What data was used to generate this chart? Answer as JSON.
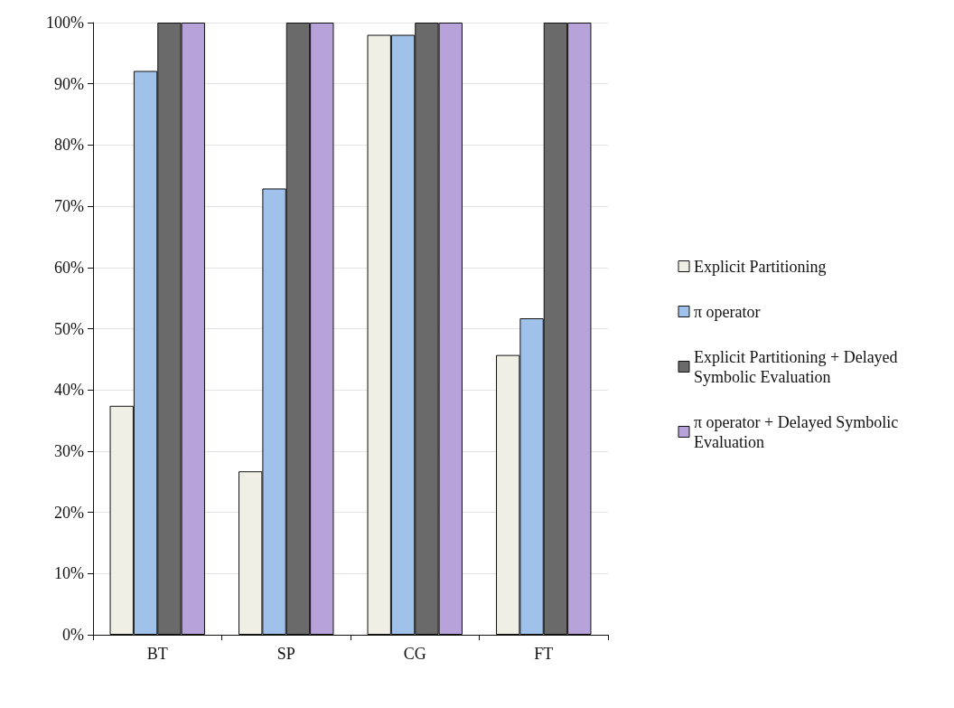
{
  "chart_data": {
    "type": "bar",
    "categories": [
      "BT",
      "SP",
      "CG",
      "FT"
    ],
    "series": [
      {
        "name": "Explicit Partitioning",
        "color": "#efefe6",
        "values": [
          37.4,
          26.7,
          98,
          45.7
        ]
      },
      {
        "name": "π operator",
        "color": "#a0c2ea",
        "values": [
          92.1,
          72.9,
          98,
          51.7
        ]
      },
      {
        "name": "Explicit Partitioning + Delayed Symbolic Evaluation",
        "color": "#6a6a6a",
        "values": [
          100,
          100,
          100,
          100
        ]
      },
      {
        "name": "π operator + Delayed Symbolic Evaluation",
        "color": "#b8a2da",
        "values": [
          100,
          100,
          100,
          100
        ]
      }
    ],
    "ylim": [
      0,
      100
    ],
    "yticks": [
      {
        "value": 0,
        "label": "0%"
      },
      {
        "value": 10,
        "label": "10%"
      },
      {
        "value": 20,
        "label": "20%"
      },
      {
        "value": 30,
        "label": "30%"
      },
      {
        "value": 40,
        "label": "40%"
      },
      {
        "value": 50,
        "label": "50%"
      },
      {
        "value": 60,
        "label": "60%"
      },
      {
        "value": 70,
        "label": "70%"
      },
      {
        "value": 80,
        "label": "80%"
      },
      {
        "value": 90,
        "label": "90%"
      },
      {
        "value": 100,
        "label": "100%"
      }
    ],
    "grid": "y",
    "legend": "right"
  }
}
